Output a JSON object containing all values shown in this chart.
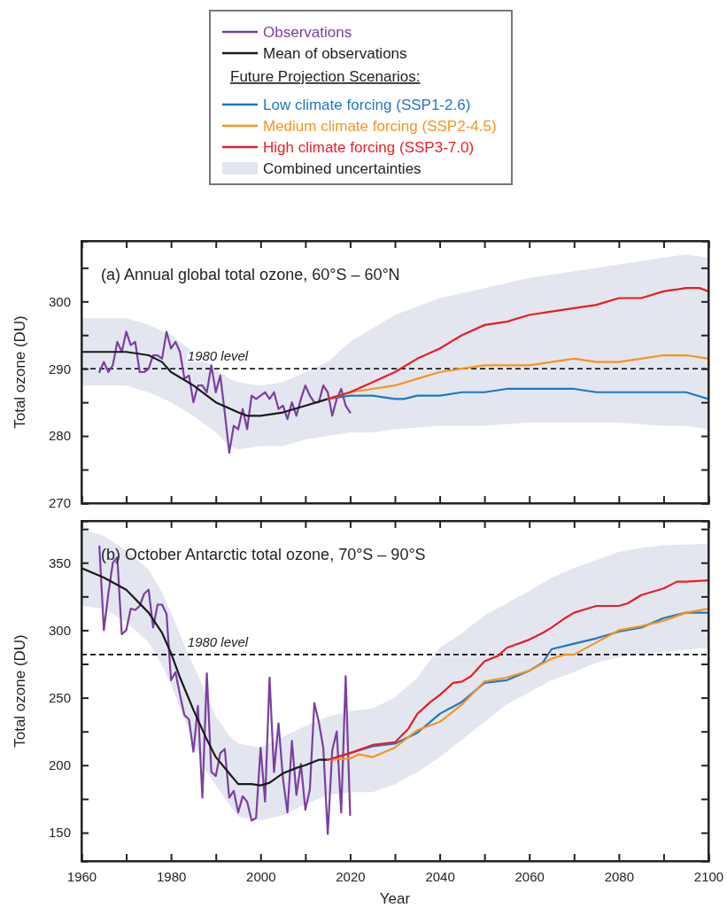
{
  "chart_data": [
    {
      "type": "line",
      "title": "(a) Annual global total ozone, 60°S – 60°N",
      "ylabel": "Total ozone (DU)",
      "legend": "top",
      "legend_title": "Future Projection Scenarios:",
      "tick_labels": "y",
      "xlim": [
        1960,
        2100
      ],
      "xticks": [
        1960,
        {
          "value": 1970,
          "label": null
        },
        1980,
        {
          "value": 1990,
          "label": null
        },
        2000,
        {
          "value": 2010,
          "label": null
        },
        2020,
        {
          "value": 2030,
          "label": null
        },
        2040,
        {
          "value": 2050,
          "label": null
        },
        2060,
        {
          "value": 2070,
          "label": null
        },
        2080,
        {
          "value": 2090,
          "label": null
        },
        2100
      ],
      "ylim": [
        270,
        309
      ],
      "yticks": [
        270,
        {
          "value": 275,
          "label": null
        },
        280,
        {
          "value": 285,
          "label": null
        },
        290,
        {
          "value": 295,
          "label": null
        },
        300,
        {
          "value": 305,
          "label": null
        }
      ],
      "ref_lines": [
        {
          "axis": "y",
          "value": 290,
          "label": "1980 level",
          "color": "#000000",
          "line_style": "dashed"
        }
      ],
      "series": [
        {
          "name": "Observations",
          "type": "line",
          "color": "#7b3fa0",
          "x": [
            1964,
            1965,
            1966,
            1967,
            1968,
            1969,
            1970,
            1971,
            1972,
            1973,
            1974,
            1975,
            1976,
            1977,
            1978,
            1979,
            1980,
            1981,
            1982,
            1983,
            1984,
            1985,
            1986,
            1987,
            1988,
            1989,
            1990,
            1991,
            1992,
            1993,
            1994,
            1995,
            1996,
            1997,
            1998,
            1999,
            2000,
            2001,
            2002,
            2003,
            2004,
            2005,
            2006,
            2007,
            2008,
            2009,
            2010,
            2011,
            2012,
            2013,
            2014,
            2015,
            2016,
            2017,
            2018,
            2019,
            2020
          ],
          "values": [
            289.5,
            291,
            289.5,
            290.5,
            294,
            292.5,
            295.5,
            293.5,
            294,
            289.5,
            289.5,
            290,
            292,
            292,
            291.5,
            295.5,
            293,
            294,
            292.5,
            288.5,
            289,
            285,
            287.5,
            287.5,
            286.5,
            290.5,
            286.5,
            289,
            283.5,
            277.5,
            281.5,
            281,
            284,
            281,
            286,
            285.5,
            286,
            286.5,
            285.5,
            286.5,
            284,
            284.5,
            282.5,
            285,
            283,
            285.5,
            287.5,
            286,
            285,
            285,
            287.5,
            286.5,
            283,
            285.5,
            287,
            284.5,
            283.5
          ]
        },
        {
          "name": "Mean of observations",
          "type": "line",
          "color": "#1a1a1a",
          "x": [
            1960,
            1965,
            1970,
            1975,
            1978,
            1980,
            1985,
            1990,
            1995,
            1997,
            2000,
            2005,
            2010,
            2015
          ],
          "values": [
            292.5,
            292.5,
            292.5,
            292,
            291,
            289.5,
            287.5,
            285,
            283.5,
            283,
            283,
            283.5,
            284.5,
            285.5
          ]
        },
        {
          "name": "Low climate forcing (SSP1-2.6)",
          "type": "line",
          "color": "#1f78c1",
          "x": [
            2015,
            2020,
            2025,
            2030,
            2032,
            2035,
            2040,
            2045,
            2050,
            2055,
            2060,
            2065,
            2070,
            2075,
            2080,
            2085,
            2090,
            2095,
            2100
          ],
          "values": [
            285.5,
            286,
            286,
            285.5,
            285.5,
            286,
            286,
            286.5,
            286.5,
            287,
            287,
            287,
            287,
            286.5,
            286.5,
            286.5,
            286.5,
            286.5,
            285.5
          ]
        },
        {
          "name": "Medium climate forcing (SSP2-4.5)",
          "type": "line",
          "color": "#f7941d",
          "x": [
            2015,
            2020,
            2025,
            2030,
            2035,
            2040,
            2045,
            2050,
            2055,
            2060,
            2065,
            2070,
            2075,
            2080,
            2085,
            2090,
            2095,
            2100
          ],
          "values": [
            285.5,
            286.5,
            287,
            287.5,
            288.5,
            289.5,
            290,
            290.5,
            290.5,
            290.5,
            291,
            291.5,
            291,
            291,
            291.5,
            292,
            292,
            291.5
          ]
        },
        {
          "name": "High climate forcing (SSP3-7.0)",
          "type": "line",
          "color": "#ec1c24",
          "x": [
            2015,
            2020,
            2025,
            2030,
            2035,
            2040,
            2045,
            2050,
            2055,
            2060,
            2065,
            2070,
            2075,
            2080,
            2085,
            2090,
            2095,
            2098,
            2100
          ],
          "values": [
            285.5,
            286.5,
            288,
            289.5,
            291.5,
            293,
            295,
            296.5,
            297,
            298,
            298.5,
            299,
            299.5,
            300.5,
            300.5,
            301.5,
            302,
            302,
            301.5
          ]
        },
        {
          "name": "Combined uncertainties",
          "type": "line",
          "color": "#e3e6ef",
          "x": [
            1960,
            1965,
            1970,
            1975,
            1980,
            1985,
            1990,
            1993,
            1995,
            2000,
            2005,
            2010,
            2015,
            2020,
            2025,
            2030,
            2040,
            2050,
            2060,
            2070,
            2080,
            2090,
            2095,
            2100
          ],
          "values": [
            null,
            null,
            null,
            null,
            null,
            null,
            null,
            null,
            null,
            null,
            null,
            null,
            null,
            null,
            null,
            null,
            null,
            null,
            null,
            null,
            null,
            null,
            null,
            null
          ],
          "lower": [
            287.5,
            287.5,
            287.5,
            286.5,
            285,
            283,
            280.5,
            278.5,
            278,
            278.5,
            278.5,
            279.5,
            280,
            280.5,
            280.5,
            281,
            281.5,
            281.5,
            282,
            282,
            282,
            281.5,
            281.5,
            281
          ],
          "upper": [
            297.5,
            297.5,
            297.5,
            296.5,
            295,
            292.5,
            290,
            288.5,
            288,
            287.5,
            288,
            289.5,
            291,
            294,
            296,
            298,
            300.5,
            302,
            303.5,
            304.5,
            305.5,
            306.5,
            307,
            306.5
          ]
        }
      ]
    },
    {
      "type": "line",
      "title": "(b) October Antarctic total ozone, 70°S – 90°S",
      "ylabel": "Total ozone (DU)",
      "xlabel": "Year",
      "xlim": [
        1960,
        2100
      ],
      "xticks": [
        1960,
        {
          "value": 1970,
          "label": null
        },
        1980,
        {
          "value": 1990,
          "label": null
        },
        2000,
        {
          "value": 2010,
          "label": null
        },
        2020,
        {
          "value": 2030,
          "label": null
        },
        2040,
        {
          "value": 2050,
          "label": null
        },
        2060,
        {
          "value": 2070,
          "label": null
        },
        2080,
        {
          "value": 2090,
          "label": null
        },
        2100
      ],
      "ylim": [
        129,
        381
      ],
      "yticks": [
        150,
        {
          "value": 175,
          "label": null
        },
        200,
        {
          "value": 225,
          "label": null
        },
        250,
        {
          "value": 275,
          "label": null
        },
        300,
        {
          "value": 325,
          "label": null
        },
        350,
        {
          "value": 375,
          "label": null
        }
      ],
      "ref_lines": [
        {
          "axis": "y",
          "value": 282,
          "label": "1980 level",
          "color": "#000000",
          "line_style": "dashed"
        }
      ],
      "series": [
        {
          "type": "line",
          "color": "#7b3fa0",
          "x": [
            1964,
            1965,
            1966,
            1967,
            1968,
            1969,
            1970,
            1971,
            1972,
            1973,
            1974,
            1975,
            1976,
            1977,
            1978,
            1979,
            1980,
            1981,
            1982,
            1983,
            1984,
            1985,
            1986,
            1987,
            1988,
            1989,
            1990,
            1991,
            1992,
            1993,
            1994,
            1995,
            1996,
            1997,
            1998,
            1999,
            2000,
            2001,
            2002,
            2003,
            2004,
            2005,
            2006,
            2007,
            2008,
            2009,
            2010,
            2011,
            2012,
            2013,
            2014,
            2015,
            2016,
            2017,
            2018,
            2019,
            2020
          ],
          "values": [
            362,
            300,
            327,
            350,
            354,
            297,
            300,
            316,
            315,
            318,
            327,
            330,
            302,
            319,
            319,
            312,
            263,
            269,
            252,
            237,
            234,
            210,
            244,
            176,
            268,
            195,
            192,
            209,
            212,
            176,
            181,
            165,
            177,
            173,
            159,
            161,
            213,
            173,
            265,
            195,
            231,
            190,
            165,
            218,
            178,
            201,
            167,
            182,
            246,
            232,
            213,
            149,
            211,
            225,
            165,
            266,
            163
          ]
        },
        {
          "type": "line",
          "color": "#1a1a1a",
          "x": [
            1960,
            1965,
            1970,
            1975,
            1978,
            1980,
            1982,
            1985,
            1988,
            1990,
            1993,
            1995,
            1998,
            2000,
            2002,
            2005,
            2008,
            2010,
            2013,
            2015
          ],
          "values": [
            346,
            339,
            330,
            313,
            298,
            283,
            265,
            241,
            219,
            206,
            194,
            186,
            186,
            185,
            187,
            194,
            198,
            200,
            204,
            204
          ]
        },
        {
          "type": "line",
          "color": "#1f78c1",
          "x": [
            2015,
            2020,
            2025,
            2030,
            2035,
            2040,
            2045,
            2050,
            2055,
            2060,
            2063,
            2065,
            2070,
            2075,
            2080,
            2085,
            2090,
            2095,
            2100
          ],
          "values": [
            204,
            209,
            214,
            216,
            224,
            238,
            247,
            261,
            263,
            270,
            276,
            286,
            290,
            294,
            299,
            302,
            309,
            313,
            313
          ]
        },
        {
          "type": "line",
          "color": "#f7941d",
          "x": [
            2015,
            2020,
            2022,
            2025,
            2030,
            2035,
            2040,
            2045,
            2050,
            2055,
            2060,
            2065,
            2068,
            2070,
            2075,
            2080,
            2085,
            2090,
            2095,
            2100
          ],
          "values": [
            204,
            205,
            208,
            206,
            213,
            226,
            232,
            245,
            262,
            265,
            270,
            279,
            282,
            282,
            291,
            300,
            303,
            307,
            313,
            316
          ]
        },
        {
          "type": "line",
          "color": "#ec1c24",
          "x": [
            2015,
            2020,
            2025,
            2030,
            2033,
            2035,
            2038,
            2040,
            2043,
            2045,
            2047,
            2050,
            2053,
            2055,
            2060,
            2063,
            2065,
            2068,
            2070,
            2073,
            2075,
            2080,
            2082,
            2085,
            2090,
            2093,
            2095,
            2100
          ],
          "values": [
            204,
            209,
            215,
            217,
            227,
            238,
            247,
            252,
            261,
            262,
            266,
            277,
            281,
            287,
            293,
            298,
            302,
            309,
            313,
            316,
            318,
            318,
            320,
            326,
            331,
            336,
            336,
            337
          ]
        },
        {
          "type": "line",
          "color": "#e3e6ef",
          "x": [
            1960,
            1965,
            1970,
            1975,
            1978,
            1980,
            1983,
            1985,
            1988,
            1990,
            1993,
            1995,
            2000,
            2005,
            2010,
            2015,
            2020,
            2025,
            2030,
            2035,
            2040,
            2045,
            2050,
            2055,
            2060,
            2065,
            2070,
            2075,
            2080,
            2085,
            2090,
            2100
          ],
          "values": [
            null,
            null,
            null,
            null,
            null,
            null,
            null,
            null,
            null,
            null,
            null,
            null,
            null,
            null,
            null,
            null,
            null,
            null,
            null,
            null,
            null,
            null,
            null,
            null,
            null,
            null,
            null,
            null,
            null,
            null,
            null,
            null
          ],
          "lower": [
            318,
            316,
            306,
            291,
            274,
            260,
            234,
            217,
            195,
            185,
            171,
            162,
            159,
            163,
            171,
            178,
            180,
            180,
            186,
            195,
            206,
            219,
            232,
            245,
            254,
            263,
            269,
            276,
            280,
            282,
            284,
            287
          ],
          "upper": [
            375,
            370,
            359,
            345,
            328,
            313,
            289,
            274,
            252,
            236,
            222,
            216,
            213,
            221,
            229,
            236,
            240,
            242,
            250,
            265,
            287,
            298,
            311,
            320,
            329,
            339,
            346,
            352,
            358,
            361,
            363,
            364
          ]
        }
      ]
    }
  ]
}
